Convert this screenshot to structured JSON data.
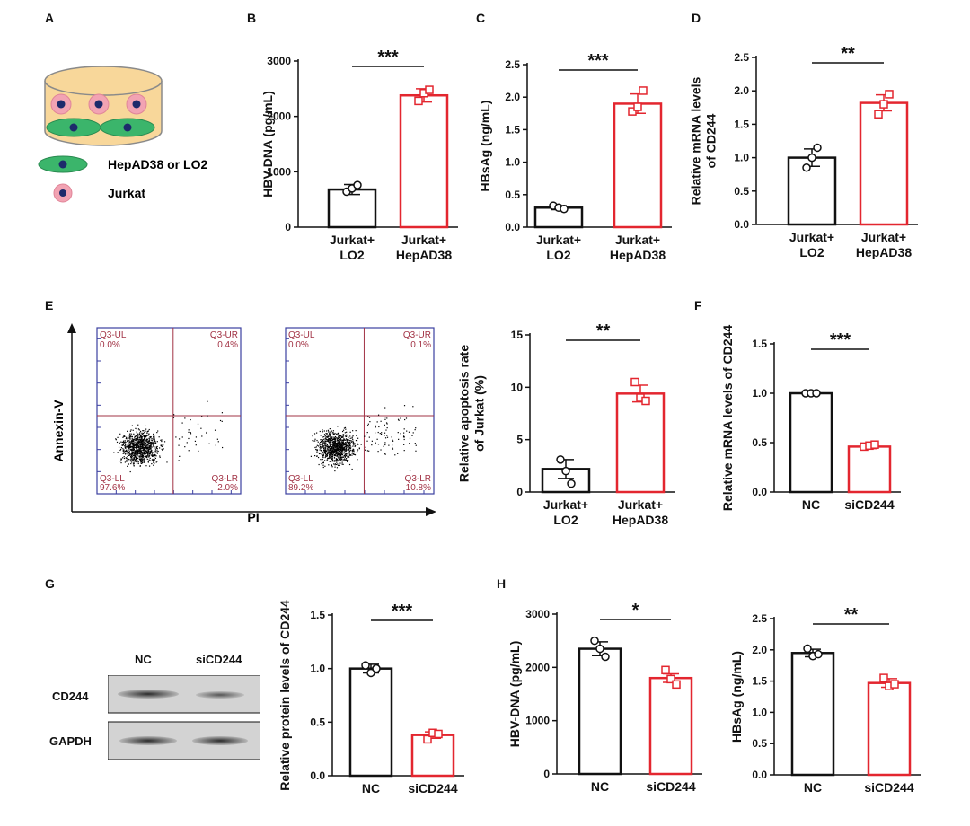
{
  "panels": {
    "A": "A",
    "B": "B",
    "C": "C",
    "D": "D",
    "E": "E",
    "F": "F",
    "G": "G",
    "H": "H"
  },
  "schematic": {
    "legend_hep": "HepAD38 or LO2",
    "legend_jurkat": "Jurkat"
  },
  "colors": {
    "control": "#111111",
    "treated": "#e3262f",
    "flow_frame": "#3b3fa0",
    "flow_gate": "#a23345",
    "cell_fill": "#f8d79a",
    "hep_cell": "#3bb56b",
    "jurkat_cell": "#f2a3b3",
    "nucleus": "#1d2a6b"
  },
  "flow": {
    "y_label": "Annexin-V",
    "x_label": "PI",
    "plots": [
      {
        "ul_name": "Q3-UL",
        "ul_val": "0.0%",
        "ur_name": "Q3-UR",
        "ur_val": "0.4%",
        "ll_name": "Q3-LL",
        "ll_val": "97.6%",
        "lr_name": "Q3-LR",
        "lr_val": "2.0%"
      },
      {
        "ul_name": "Q3-UL",
        "ul_val": "0.0%",
        "ur_name": "Q3-UR",
        "ur_val": "0.1%",
        "ll_name": "Q3-LL",
        "ll_val": "89.2%",
        "lr_name": "Q3-LR",
        "lr_val": "10.8%"
      }
    ]
  },
  "western": {
    "lane1": "NC",
    "lane2": "siCD244",
    "row1": "CD244",
    "row2": "GAPDH"
  },
  "chart_data": [
    {
      "id": "B",
      "type": "bar",
      "categories": [
        [
          "Jurkat+",
          "LO2"
        ],
        [
          "Jurkat+",
          "HepAD38"
        ]
      ],
      "values": [
        680,
        2380
      ],
      "errors": [
        90,
        120
      ],
      "points": [
        [
          640,
          700,
          760
        ],
        [
          2280,
          2420,
          2480
        ]
      ],
      "ylabel": [
        "HBV-DNA (pg/mL)"
      ],
      "ylim": [
        0,
        3000
      ],
      "ticks": [
        0,
        1000,
        2000,
        3000
      ],
      "tick_labels": [
        "0",
        "1000",
        "2000",
        "3000"
      ],
      "significance": "***"
    },
    {
      "id": "C",
      "type": "bar",
      "categories": [
        [
          "Jurkat+",
          "LO2"
        ],
        [
          "Jurkat+",
          "HepAD38"
        ]
      ],
      "values": [
        0.3,
        1.9
      ],
      "errors": [
        0.03,
        0.15
      ],
      "points": [
        [
          0.33,
          0.3,
          0.28
        ],
        [
          1.78,
          1.85,
          2.1
        ]
      ],
      "ylabel": [
        "HBsAg (ng/mL)"
      ],
      "ylim": [
        0,
        2.5
      ],
      "ticks": [
        0,
        0.5,
        1.0,
        1.5,
        2.0,
        2.5
      ],
      "tick_labels": [
        "0.0",
        "0.5",
        "1.0",
        "1.5",
        "2.0",
        "2.5"
      ],
      "significance": "***"
    },
    {
      "id": "D",
      "type": "bar",
      "categories": [
        [
          "Jurkat+",
          "LO2"
        ],
        [
          "Jurkat+",
          "HepAD38"
        ]
      ],
      "values": [
        1.0,
        1.82
      ],
      "errors": [
        0.13,
        0.12
      ],
      "points": [
        [
          0.85,
          1.0,
          1.15
        ],
        [
          1.65,
          1.8,
          1.95
        ]
      ],
      "ylabel": [
        "Relative mRNA levels",
        "of CD244"
      ],
      "ylim": [
        0,
        2.5
      ],
      "ticks": [
        0,
        0.5,
        1.0,
        1.5,
        2.0,
        2.5
      ],
      "tick_labels": [
        "0.0",
        "0.5",
        "1.0",
        "1.5",
        "2.0",
        "2.5"
      ],
      "significance": "**"
    },
    {
      "id": "E",
      "type": "bar",
      "categories": [
        [
          "Jurkat+",
          "LO2"
        ],
        [
          "Jurkat+",
          "HepAD38"
        ]
      ],
      "values": [
        2.2,
        9.4
      ],
      "errors": [
        0.9,
        0.8
      ],
      "points": [
        [
          3.1,
          2.0,
          0.8
        ],
        [
          10.5,
          9.0,
          8.7
        ]
      ],
      "ylabel": [
        "Relative apoptosis rate",
        "of Jurkat (%)"
      ],
      "ylim": [
        0,
        15
      ],
      "ticks": [
        0,
        5,
        10,
        15
      ],
      "tick_labels": [
        "0",
        "5",
        "10",
        "15"
      ],
      "significance": "**"
    },
    {
      "id": "F",
      "type": "bar",
      "categories": [
        [
          "NC"
        ],
        [
          "siCD244"
        ]
      ],
      "values": [
        1.0,
        0.46
      ],
      "errors": [
        0.01,
        0.02
      ],
      "points": [
        [
          1.0,
          1.0,
          1.0
        ],
        [
          0.46,
          0.47,
          0.48
        ]
      ],
      "ylabel": [
        "Relative mRNA levels of CD244"
      ],
      "ylim": [
        0,
        1.5
      ],
      "ticks": [
        0,
        0.5,
        1.0,
        1.5
      ],
      "tick_labels": [
        "0.0",
        "0.5",
        "1.0",
        "1.5"
      ],
      "significance": "***"
    },
    {
      "id": "G",
      "type": "bar",
      "categories": [
        [
          "NC"
        ],
        [
          "siCD244"
        ]
      ],
      "values": [
        1.0,
        0.38
      ],
      "errors": [
        0.04,
        0.03
      ],
      "points": [
        [
          1.03,
          0.96,
          1.0
        ],
        [
          0.34,
          0.4,
          0.39
        ]
      ],
      "ylabel": [
        "Relative protein levels of CD244"
      ],
      "ylim": [
        0,
        1.5
      ],
      "ticks": [
        0,
        0.5,
        1.0,
        1.5
      ],
      "tick_labels": [
        "0.0",
        "0.5",
        "1.0",
        "1.5"
      ],
      "significance": "***"
    },
    {
      "id": "H1",
      "type": "bar",
      "categories": [
        [
          "NC"
        ],
        [
          "siCD244"
        ]
      ],
      "values": [
        2350,
        1800
      ],
      "errors": [
        130,
        80
      ],
      "points": [
        [
          2500,
          2350,
          2200
        ],
        [
          1950,
          1780,
          1680
        ]
      ],
      "ylabel": [
        "HBV-DNA (pg/mL)"
      ],
      "ylim": [
        0,
        3000
      ],
      "ticks": [
        0,
        1000,
        2000,
        3000
      ],
      "tick_labels": [
        "0",
        "1000",
        "2000",
        "3000"
      ],
      "significance": "*"
    },
    {
      "id": "H2",
      "type": "bar",
      "categories": [
        [
          "NC"
        ],
        [
          "siCD244"
        ]
      ],
      "values": [
        1.95,
        1.47
      ],
      "errors": [
        0.06,
        0.07
      ],
      "points": [
        [
          2.02,
          1.9,
          1.93
        ],
        [
          1.55,
          1.42,
          1.45
        ]
      ],
      "ylabel": [
        "HBsAg (ng/mL)"
      ],
      "ylim": [
        0,
        2.5
      ],
      "ticks": [
        0,
        0.5,
        1.0,
        1.5,
        2.0,
        2.5
      ],
      "tick_labels": [
        "0.0",
        "0.5",
        "1.0",
        "1.5",
        "2.0",
        "2.5"
      ],
      "significance": "**"
    }
  ]
}
